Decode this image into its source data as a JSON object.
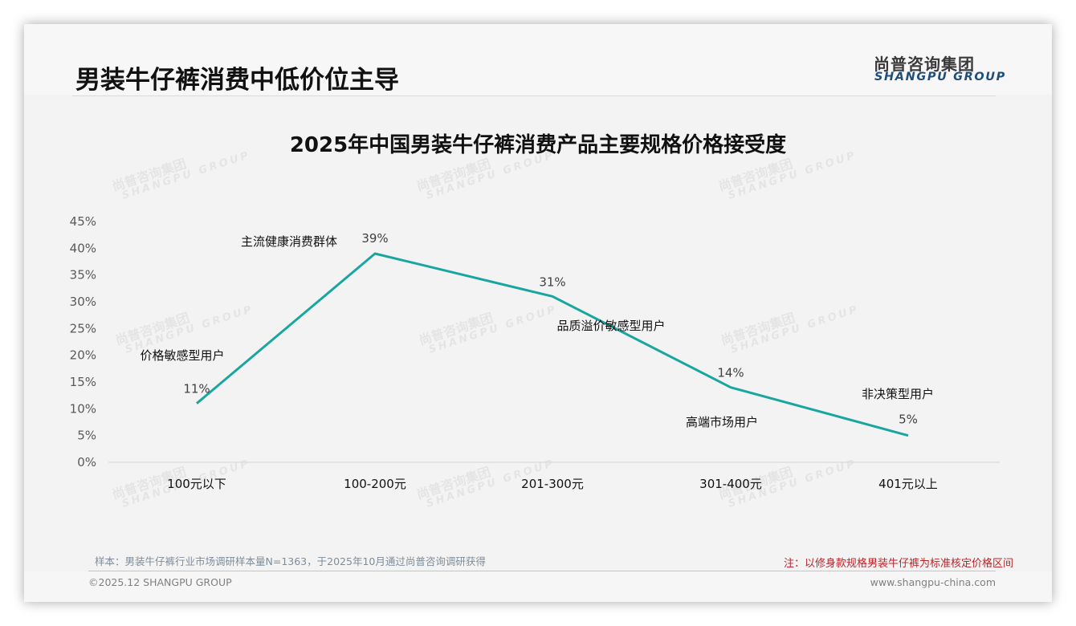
{
  "page": {
    "title": "男装牛仔裤消费中低价位主导",
    "logo": {
      "cn": "尚普咨询集团",
      "en": "SHANGPU GROUP"
    },
    "watermark": {
      "cn": "尚普咨询集团",
      "en": "SHANGPU GROUP"
    },
    "footer": {
      "sample_note": "样本：男装牛仔裤行业市场调研样本量N=1363，于2025年10月通过尚普咨询调研获得",
      "red_note": "注：以修身款规格男装牛仔裤为标准核定价格区间",
      "copyright": "©2025.12 SHANGPU GROUP",
      "website": "www.shangpu-china.com"
    }
  },
  "colors": {
    "line": "#1aa6a0",
    "title": "#111111",
    "logo_en": "#1f4e79",
    "red_note": "#b8262b",
    "axis": "#d9d9d9",
    "tick_text": "#595959"
  },
  "chart_data": {
    "type": "line",
    "title": "2025年中国男装牛仔裤消费产品主要规格价格接受度",
    "xlabel": "",
    "ylabel": "",
    "categories": [
      "100元以下",
      "100-200元",
      "201-300元",
      "301-400元",
      "401元以上"
    ],
    "series": [
      {
        "name": "价格接受度",
        "values": [
          11,
          39,
          31,
          14,
          5
        ]
      }
    ],
    "value_labels": [
      "11%",
      "39%",
      "31%",
      "14%",
      "5%"
    ],
    "annotations": [
      "价格敏感型用户",
      "主流健康消费群体",
      "品质溢价敏感型用户",
      "高端市场用户",
      "非决策型用户"
    ],
    "y_ticks": [
      "0%",
      "5%",
      "10%",
      "15%",
      "20%",
      "25%",
      "30%",
      "35%",
      "40%",
      "45%"
    ],
    "ylim": [
      0,
      45
    ],
    "grid": false,
    "legend": "none"
  }
}
